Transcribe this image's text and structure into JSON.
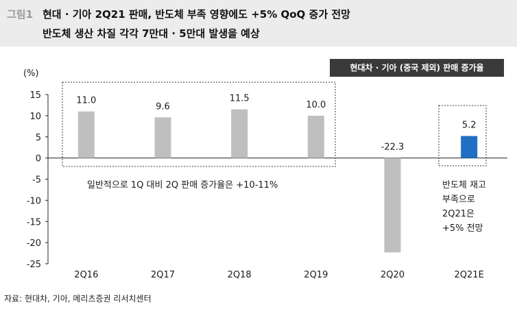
{
  "header": {
    "fig_label": "그림1",
    "title_line1": "현대 · 기아 2Q21 판매, 반도체 부족 영향에도 +5% QoQ 증가 전망",
    "title_line2": "반도체 생산 차질 각각 7만대 · 5만대 발생을 예상"
  },
  "legend": {
    "label": "현대차 · 기아 (중국 제외) 판매 증가율"
  },
  "chart_data": {
    "type": "bar",
    "unit_label": "(%)",
    "categories": [
      "2Q16",
      "2Q17",
      "2Q18",
      "2Q19",
      "2Q20",
      "2Q21E"
    ],
    "values": [
      11.0,
      9.6,
      11.5,
      10.0,
      -22.3,
      5.2
    ],
    "value_labels": [
      "11.0",
      "9.6",
      "11.5",
      "10.0",
      "-22.3",
      "5.2"
    ],
    "ylim": [
      -25,
      15
    ],
    "yticks": [
      15,
      10,
      5,
      0,
      -5,
      -10,
      -15,
      -20,
      -25
    ],
    "bar_colors": [
      "#bfbfbf",
      "#bfbfbf",
      "#bfbfbf",
      "#bfbfbf",
      "#bfbfbf",
      "#1f6fc5"
    ],
    "grid": false,
    "annotations": {
      "historical": "일반적으로 1Q 대비 2Q 판매 증가율은 +10-11%",
      "forecast_lines": [
        "반도체 재고",
        "부족으로",
        "2Q21은",
        "+5% 전망"
      ]
    }
  },
  "footer": {
    "source": "자료: 현대차, 기아, 메리츠증권 리서치센터"
  }
}
